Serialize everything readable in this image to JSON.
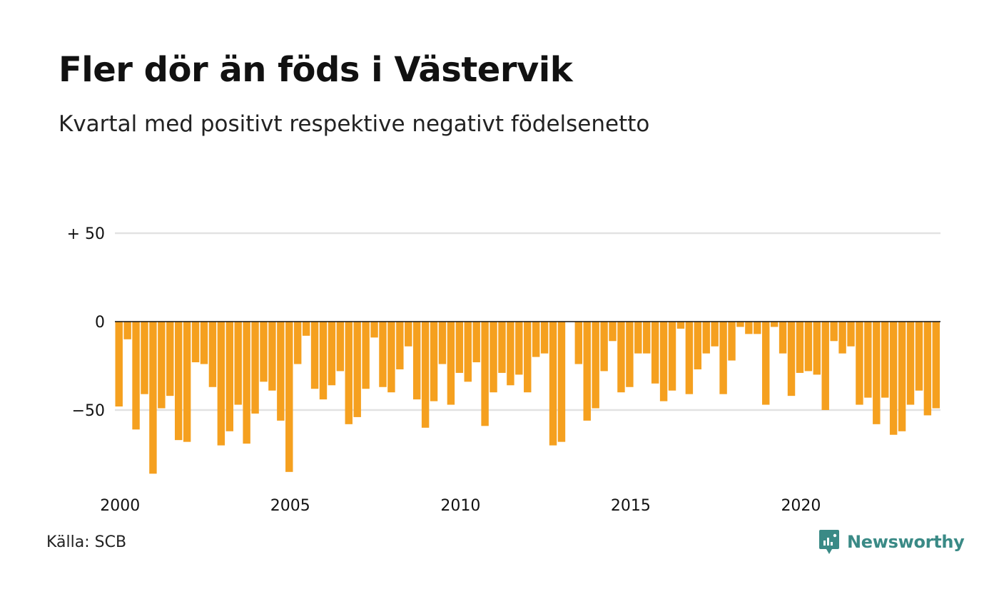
{
  "title": "Fler dör än föds i Västervik",
  "subtitle": "Kvartal med positivt respektive negativt födelsenetto",
  "source": "Källa: SCB",
  "brand": {
    "name": "Newsworthy",
    "icon": "newsworthy-logo-icon",
    "color": "#3a8a86"
  },
  "chart_data": {
    "type": "bar",
    "title": "Fler dör än föds i Västervik",
    "subtitle": "Kvartal med positivt respektive negativt födelsenetto",
    "xlabel": "",
    "ylabel": "",
    "x_ticks": [
      "2000",
      "2005",
      "2010",
      "2015",
      "2020"
    ],
    "y_ticks": [
      {
        "value": 50,
        "label": "+ 50"
      },
      {
        "value": 0,
        "label": "0"
      },
      {
        "value": -50,
        "label": "−50"
      }
    ],
    "ylim": [
      -95,
      55
    ],
    "start": {
      "year": 2000,
      "quarter": 1
    },
    "grid": true,
    "bar_color": "#f5a01f",
    "values": [
      -48,
      -10,
      -61,
      -41,
      -86,
      -49,
      -42,
      -67,
      -68,
      -23,
      -24,
      -37,
      -70,
      -62,
      -47,
      -69,
      -52,
      -34,
      -39,
      -56,
      -85,
      -24,
      -8,
      -38,
      -44,
      -36,
      -28,
      -58,
      -54,
      -38,
      -9,
      -37,
      -40,
      -27,
      -14,
      -44,
      -60,
      -45,
      -24,
      -47,
      -29,
      -34,
      -23,
      -59,
      -40,
      -29,
      -36,
      -30,
      -40,
      -20,
      -18,
      -70,
      -68,
      0,
      -24,
      -56,
      -49,
      -28,
      -11,
      -40,
      -37,
      -18,
      -18,
      -35,
      -45,
      -39,
      -4,
      -41,
      -27,
      -18,
      -14,
      -41,
      -22,
      -3,
      -7,
      -7,
      -47,
      -3,
      -18,
      -42,
      -29,
      -28,
      -30,
      -50,
      -11,
      -18,
      -14,
      -47,
      -43,
      -58,
      -43,
      -64,
      -62,
      -47,
      -39,
      -53,
      -49
    ]
  }
}
